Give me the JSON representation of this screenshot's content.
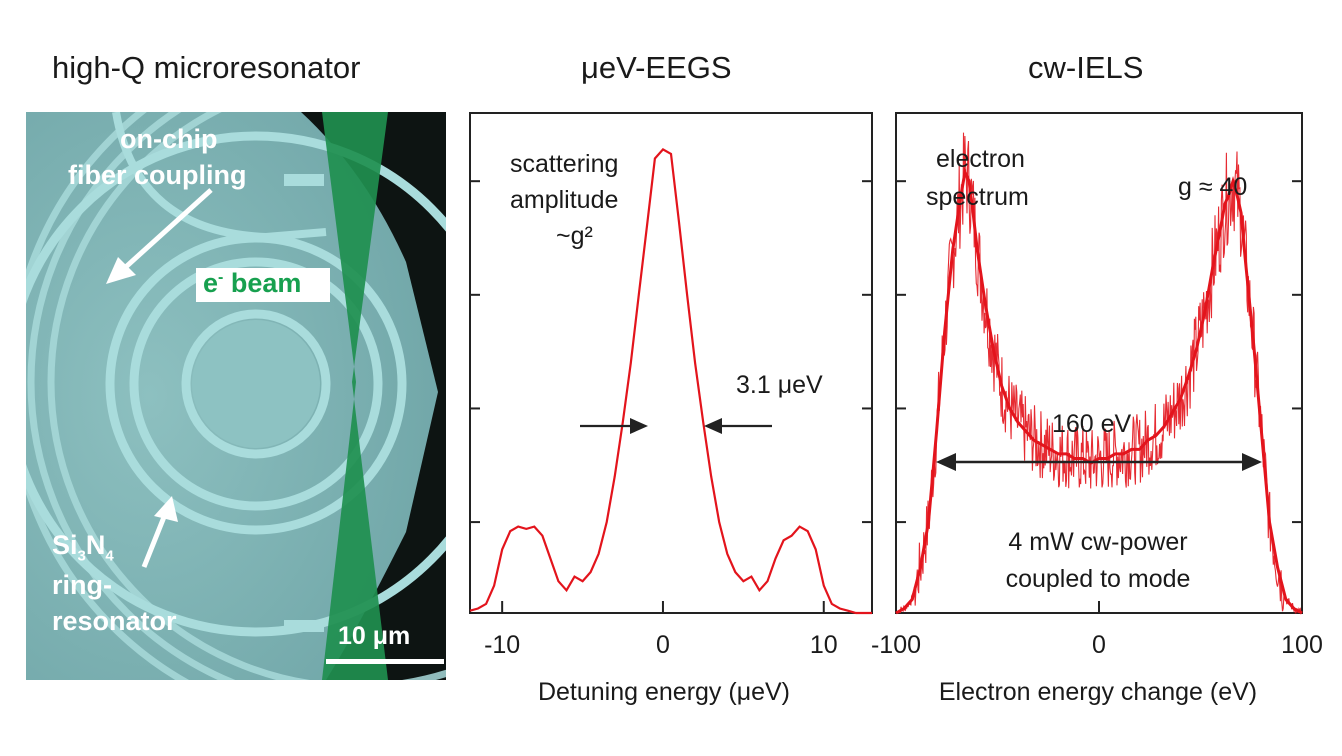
{
  "panels": {
    "micro": {
      "title": "high-Q microresonator"
    },
    "eegs": {
      "title": "μeV-EEGS"
    },
    "iels": {
      "title": "cw-IELS"
    }
  },
  "micrograph": {
    "label_coupling_1": "on-chip",
    "label_coupling_2": "fiber coupling",
    "label_beam": "e",
    "label_beam_sup": "-",
    "label_beam_rest": " beam",
    "label_ring_si": "Si",
    "label_ring_sub3": "3",
    "label_ring_n": "N",
    "label_ring_sub4": "4",
    "label_ring_2": "ring-",
    "label_ring_3": "resonator",
    "scalebar": "10 μm",
    "colors": {
      "beam": "#1f8f4f",
      "beam_label": "#17a04f",
      "substrate": "#7fb3b3"
    }
  },
  "chart_data": [
    {
      "type": "line",
      "xlabel": "Detuning energy (μeV)",
      "xlim": [
        -12,
        13
      ],
      "xticks": [
        -10,
        0,
        10
      ],
      "xtick_labels": [
        "-10",
        "0",
        "10"
      ],
      "ylim": [
        0,
        1.1
      ],
      "color": "#e3141c",
      "annotations": {
        "amp1": "scattering",
        "amp2": "amplitude",
        "amp3": "~g²",
        "width": "3.1 μeV"
      },
      "x": [
        -12,
        -11.5,
        -11,
        -10.5,
        -10,
        -9.5,
        -9,
        -8.5,
        -8,
        -7.5,
        -7,
        -6.5,
        -6,
        -5.5,
        -5,
        -4.5,
        -4,
        -3.5,
        -3,
        -2.5,
        -2,
        -1.5,
        -1,
        -0.5,
        0,
        0.5,
        1,
        1.5,
        2,
        2.5,
        3,
        3.5,
        4,
        4.5,
        5,
        5.5,
        6,
        6.5,
        7,
        7.5,
        8,
        8.5,
        9,
        9.5,
        10,
        10.5,
        11,
        11.5,
        12,
        13
      ],
      "y": [
        0.005,
        0.01,
        0.02,
        0.06,
        0.14,
        0.18,
        0.19,
        0.185,
        0.19,
        0.17,
        0.12,
        0.07,
        0.05,
        0.08,
        0.07,
        0.09,
        0.13,
        0.2,
        0.3,
        0.42,
        0.55,
        0.7,
        0.85,
        1.0,
        1.02,
        1.01,
        0.86,
        0.7,
        0.55,
        0.42,
        0.3,
        0.2,
        0.13,
        0.09,
        0.07,
        0.08,
        0.05,
        0.07,
        0.12,
        0.16,
        0.17,
        0.19,
        0.18,
        0.14,
        0.06,
        0.02,
        0.01,
        0.005,
        0.0,
        0.0
      ]
    },
    {
      "type": "line",
      "xlabel": "Electron energy change (eV)",
      "xlim": [
        -100,
        100
      ],
      "xticks": [
        -100,
        0,
        100
      ],
      "xtick_labels": [
        "-100",
        "0",
        "100"
      ],
      "ylim": [
        0,
        1.1
      ],
      "color": "#e3141c",
      "annotations": {
        "es1": "electron",
        "es2": "spectrum",
        "g": "g ≈ 40",
        "width": "160 eV",
        "power1": "4 mW cw-power",
        "power2": "coupled to mode"
      },
      "x": [
        -100,
        -96,
        -92,
        -88,
        -84,
        -80,
        -76,
        -72,
        -70,
        -68,
        -66,
        -64,
        -62,
        -60,
        -56,
        -52,
        -48,
        -44,
        -40,
        -36,
        -32,
        -28,
        -24,
        -20,
        -16,
        -12,
        -8,
        -4,
        0,
        4,
        8,
        12,
        16,
        20,
        24,
        28,
        32,
        36,
        40,
        44,
        48,
        52,
        56,
        60,
        62,
        64,
        66,
        68,
        70,
        72,
        76,
        80,
        84,
        88,
        92,
        96,
        100
      ],
      "y": [
        0.0,
        0.01,
        0.03,
        0.1,
        0.2,
        0.4,
        0.62,
        0.8,
        0.86,
        0.92,
        0.97,
        0.95,
        0.88,
        0.8,
        0.68,
        0.58,
        0.5,
        0.45,
        0.42,
        0.4,
        0.38,
        0.37,
        0.36,
        0.35,
        0.35,
        0.34,
        0.34,
        0.33,
        0.34,
        0.34,
        0.35,
        0.35,
        0.36,
        0.36,
        0.38,
        0.39,
        0.41,
        0.44,
        0.47,
        0.52,
        0.58,
        0.66,
        0.76,
        0.85,
        0.9,
        0.92,
        0.95,
        0.92,
        0.88,
        0.78,
        0.6,
        0.4,
        0.2,
        0.1,
        0.03,
        0.01,
        0.0
      ]
    }
  ]
}
